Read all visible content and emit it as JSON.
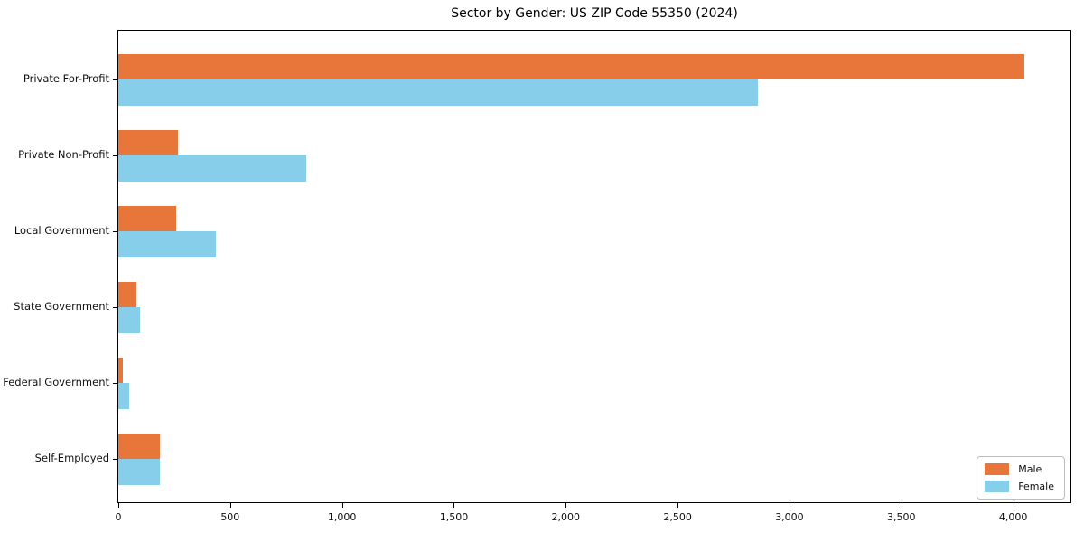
{
  "chart_data": {
    "type": "bar",
    "orientation": "horizontal",
    "title": "Sector by Gender: US ZIP Code 55350 (2024)",
    "categories": [
      "Private For-Profit",
      "Private Non-Profit",
      "Local Government",
      "State Government",
      "Federal Government",
      "Self-Employed"
    ],
    "series": [
      {
        "name": "Male",
        "color": "#e8763b",
        "values": [
          4050,
          265,
          260,
          80,
          20,
          185
        ]
      },
      {
        "name": "Female",
        "color": "#87ceeb",
        "values": [
          2860,
          840,
          437,
          95,
          50,
          185
        ]
      }
    ],
    "xlabel": "",
    "ylabel": "",
    "xlim": [
      0,
      4256
    ],
    "xticks": [
      0,
      500,
      1000,
      1500,
      2000,
      2500,
      3000,
      3500,
      4000
    ],
    "xtick_labels": [
      "0",
      "500",
      "1,000",
      "1,500",
      "2,000",
      "2,500",
      "3,000",
      "3,500",
      "4,000"
    ],
    "grid": false,
    "legend": {
      "position": "lower right"
    }
  }
}
